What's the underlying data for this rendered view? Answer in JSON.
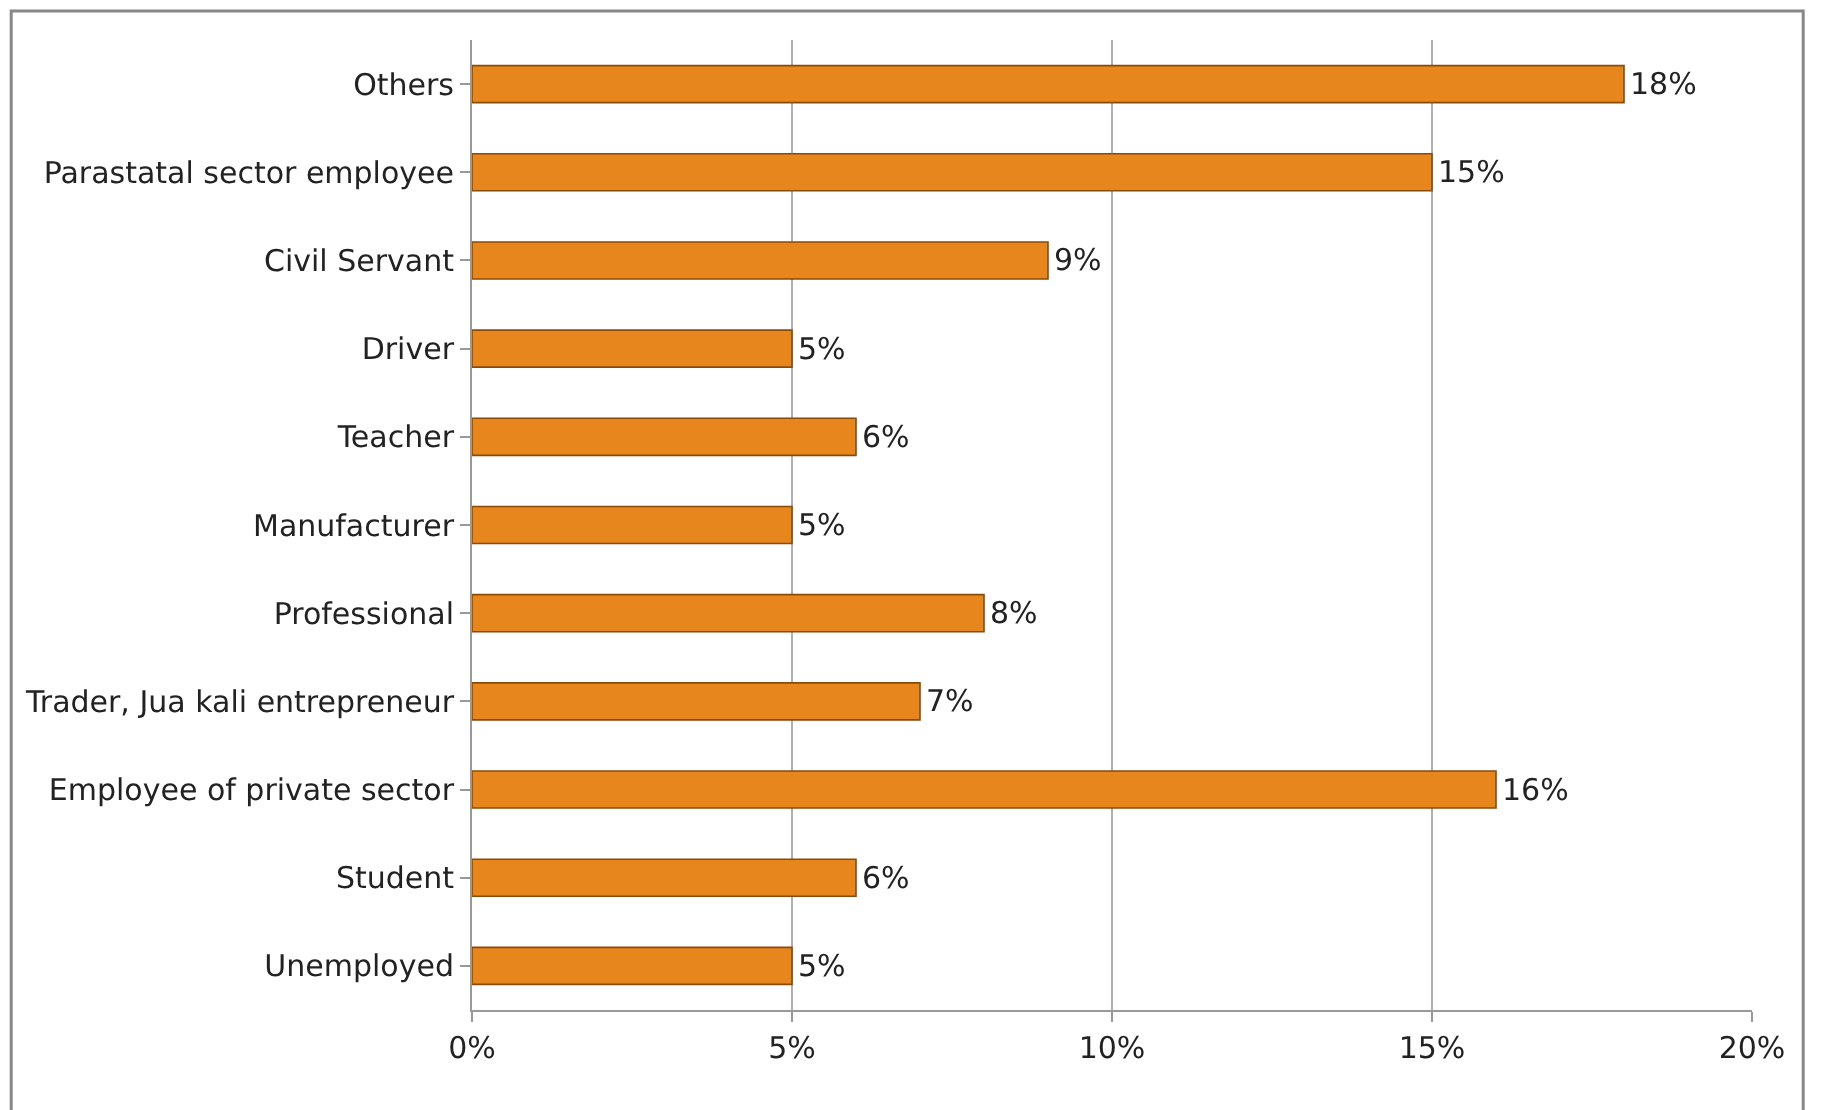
{
  "chart_data": {
    "type": "bar",
    "orientation": "horizontal",
    "categories": [
      "Others",
      "Parastatal sector employee",
      "Civil Servant",
      "Driver",
      "Teacher",
      "Manufacturer",
      "Professional",
      "Trader, Jua kali entrepreneur",
      "Employee of private sector",
      "Student",
      "Unemployed"
    ],
    "values": [
      18,
      15,
      9,
      5,
      6,
      5,
      8,
      7,
      16,
      6,
      5
    ],
    "value_labels": [
      "18%",
      "15%",
      "9%",
      "5%",
      "6%",
      "5%",
      "8%",
      "7%",
      "16%",
      "6%",
      "5%"
    ],
    "color": "#e8861e",
    "xlim": [
      0,
      20
    ],
    "xticks": [
      {
        "value": 0,
        "label": "0%"
      },
      {
        "value": 5,
        "label": "5%"
      },
      {
        "value": 10,
        "label": "10%"
      },
      {
        "value": 15,
        "label": "15%"
      },
      {
        "value": 20,
        "label": "20%"
      }
    ],
    "grid": "x",
    "legend": false
  }
}
